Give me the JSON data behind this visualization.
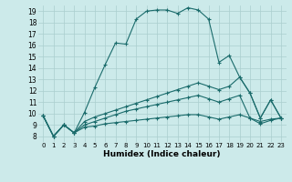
{
  "xlabel": "Humidex (Indice chaleur)",
  "ylabel": "",
  "bg_color": "#cceaea",
  "grid_color": "#aacece",
  "line_color": "#1a6b6b",
  "xlim": [
    -0.5,
    23.5
  ],
  "ylim": [
    7.5,
    19.5
  ],
  "xticks": [
    0,
    1,
    2,
    3,
    4,
    5,
    6,
    7,
    8,
    9,
    10,
    11,
    12,
    13,
    14,
    15,
    16,
    17,
    18,
    19,
    20,
    21,
    22,
    23
  ],
  "yticks": [
    8,
    9,
    10,
    11,
    12,
    13,
    14,
    15,
    16,
    17,
    18,
    19
  ],
  "series": [
    [
      9.8,
      8.0,
      9.0,
      8.3,
      10.1,
      12.3,
      14.3,
      16.2,
      16.1,
      18.3,
      19.0,
      19.1,
      19.1,
      18.8,
      19.3,
      19.1,
      18.3,
      14.5,
      15.1,
      13.2,
      11.8,
      9.6,
      11.2,
      9.6
    ],
    [
      9.8,
      8.0,
      9.0,
      8.3,
      9.3,
      9.7,
      10.0,
      10.3,
      10.6,
      10.9,
      11.2,
      11.5,
      11.8,
      12.1,
      12.4,
      12.7,
      12.4,
      12.1,
      12.4,
      13.2,
      11.8,
      9.6,
      11.2,
      9.6
    ],
    [
      9.8,
      8.0,
      9.0,
      8.3,
      9.0,
      9.3,
      9.6,
      9.9,
      10.2,
      10.4,
      10.6,
      10.8,
      11.0,
      11.2,
      11.4,
      11.6,
      11.3,
      11.0,
      11.3,
      11.6,
      9.6,
      9.3,
      9.5,
      9.6
    ],
    [
      9.8,
      8.0,
      9.0,
      8.3,
      8.8,
      8.9,
      9.1,
      9.2,
      9.3,
      9.4,
      9.5,
      9.6,
      9.7,
      9.8,
      9.9,
      9.9,
      9.7,
      9.5,
      9.7,
      9.9,
      9.6,
      9.1,
      9.4,
      9.6
    ]
  ]
}
